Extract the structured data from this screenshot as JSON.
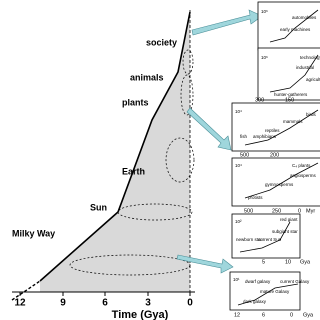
{
  "main": {
    "xticks": [
      12,
      9,
      6,
      3,
      0
    ],
    "xlabel": "Time (Gya)",
    "stages": [
      "society",
      "animals",
      "plants",
      "Earth",
      "Sun",
      "Milky Way"
    ]
  },
  "insets": [
    {
      "texts": [
        "10⁶",
        "automobiles",
        "early machines"
      ]
    },
    {
      "texts": [
        "10⁶",
        "technology",
        "industrial",
        "agriculture",
        "hunter-gatherers"
      ]
    },
    {
      "texts": [
        "300",
        "150",
        "10⁴",
        "birds",
        "mammals",
        "reptiles",
        "fish",
        "amphibians"
      ]
    },
    {
      "texts": [
        "500",
        "200",
        "10⁴",
        "C₄ plants",
        "angiosperms",
        "gymnosperms",
        "protists",
        "500",
        "250",
        "0",
        "Myr"
      ]
    },
    {
      "texts": [
        "10²",
        "red giant",
        "newborn star",
        "current Sun",
        "subgiant star",
        "5",
        "10",
        "Gya"
      ]
    },
    {
      "texts": [
        "10¹",
        "dwarf galaxy",
        "mature Galaxy",
        "current Galaxy",
        "dark galaxy",
        "12",
        "6",
        "0",
        "Gya"
      ]
    }
  ]
}
